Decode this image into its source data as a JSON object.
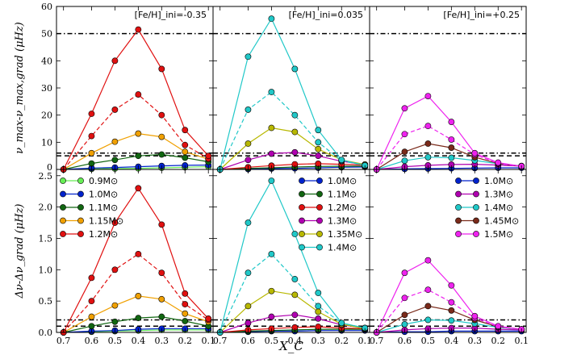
{
  "chart_data": {
    "type": "line",
    "xlabel": "X_C",
    "x_ticks": [
      "0.7",
      "0.6",
      "0.5",
      "0.4",
      "0.3",
      "0.2",
      "0.1"
    ],
    "x_values": [
      0.72,
      0.6,
      0.5,
      0.4,
      0.3,
      0.2,
      0.1
    ],
    "xlim": [
      0.75,
      0.08
    ],
    "rows": [
      {
        "ylabel": "ν_max-ν_max,grad (μHz)",
        "ylim": [
          0,
          60
        ],
        "y_ticks": [
          0,
          10,
          20,
          30,
          40,
          50,
          60
        ],
        "reference_lines": [
          {
            "style": "dash-dot",
            "y": 50
          },
          {
            "style": "dash-dot",
            "y": 6
          },
          {
            "style": "dashed",
            "y": 5
          }
        ]
      },
      {
        "ylabel": "Δν-Δν_grad (μHz)",
        "ylim": [
          0,
          2.6
        ],
        "y_ticks": [
          0.0,
          0.5,
          1.0,
          1.5,
          2.0,
          2.5
        ],
        "reference_lines": [
          {
            "style": "dash-dot",
            "y": 0.2
          },
          {
            "style": "dashed",
            "y": 0.1
          }
        ]
      }
    ],
    "panels": [
      {
        "annotation": "[Fe/H]_ini=-0.35",
        "series": [
          {
            "name": "0.9M⊙",
            "color": "#66ee55",
            "dashed": false,
            "nu": [
              0.0,
              0.2,
              0.3,
              0.4,
              0.6,
              0.8,
              1.0
            ],
            "dnu": [
              0.0,
              0.01,
              0.02,
              0.03,
              0.04,
              0.04,
              0.04
            ]
          },
          {
            "name": "1.0M⊙",
            "color": "#0022cc",
            "dashed": false,
            "nu": [
              0.0,
              0.5,
              0.7,
              1.0,
              1.3,
              1.5,
              1.6
            ],
            "dnu": [
              0.0,
              0.02,
              0.03,
              0.05,
              0.06,
              0.06,
              0.06
            ]
          },
          {
            "name": "1.1M⊙",
            "color": "#116611",
            "dashed": false,
            "nu": [
              0.0,
              2.2,
              3.5,
              5.0,
              5.5,
              4.3,
              2.8
            ],
            "dnu": [
              0.0,
              0.1,
              0.17,
              0.23,
              0.25,
              0.18,
              0.1
            ]
          },
          {
            "name": "1.15M⊙",
            "color": "#f0a000",
            "dashed": false,
            "nu": [
              0.0,
              6.0,
              10.2,
              13.2,
              12.0,
              6.5,
              3.8
            ],
            "dnu": [
              0.0,
              0.25,
              0.43,
              0.58,
              0.53,
              0.3,
              0.17
            ]
          },
          {
            "name": "1.2M⊙ (dashed)",
            "color": "#e01010",
            "dashed": true,
            "nu": [
              0.0,
              12.3,
              22.0,
              27.6,
              20.0,
              9.0,
              4.0
            ],
            "dnu": [
              0.0,
              0.5,
              1.0,
              1.25,
              0.95,
              0.45,
              0.2
            ]
          },
          {
            "name": "1.2M⊙",
            "color": "#e01010",
            "dashed": false,
            "nu": [
              0.0,
              20.5,
              40.0,
              51.5,
              37.0,
              14.5,
              5.0
            ],
            "dnu": [
              0.0,
              0.87,
              1.75,
              2.3,
              1.72,
              0.62,
              0.22
            ]
          }
        ]
      },
      {
        "annotation": "[Fe/H]_ini=0.035",
        "series": [
          {
            "name": "1.0M⊙",
            "color": "#0022cc",
            "dashed": false,
            "nu": [
              0.0,
              0.1,
              0.3,
              0.4,
              0.6,
              0.8,
              0.9
            ],
            "dnu": [
              0.0,
              0.01,
              0.02,
              0.02,
              0.03,
              0.03,
              0.03
            ]
          },
          {
            "name": "1.1M⊙",
            "color": "#116611",
            "dashed": false,
            "nu": [
              0.0,
              0.4,
              0.6,
              0.9,
              1.1,
              1.2,
              1.2
            ],
            "dnu": [
              0.0,
              0.02,
              0.03,
              0.04,
              0.05,
              0.05,
              0.05
            ]
          },
          {
            "name": "1.2M⊙",
            "color": "#e01010",
            "dashed": false,
            "nu": [
              0.0,
              0.8,
              1.4,
              1.9,
              2.1,
              1.9,
              1.6
            ],
            "dnu": [
              0.0,
              0.04,
              0.06,
              0.08,
              0.09,
              0.07,
              0.06
            ]
          },
          {
            "name": "1.3M⊙",
            "color": "#b000b0",
            "dashed": false,
            "nu": [
              0.0,
              3.5,
              5.8,
              6.3,
              5.0,
              3.0,
              1.8
            ],
            "dnu": [
              0.0,
              0.15,
              0.25,
              0.28,
              0.22,
              0.12,
              0.07
            ]
          },
          {
            "name": "1.35M⊙",
            "color": "#b8b800",
            "dashed": false,
            "nu": [
              0.0,
              9.5,
              15.3,
              13.8,
              7.5,
              3.5,
              1.8
            ],
            "dnu": [
              0.0,
              0.42,
              0.66,
              0.6,
              0.33,
              0.13,
              0.06
            ]
          },
          {
            "name": "1.4M⊙ (dashed)",
            "color": "#20c8c8",
            "dashed": true,
            "nu": [
              0.0,
              22.0,
              28.5,
              20.0,
              10.0,
              3.2,
              1.5
            ],
            "dnu": [
              0.0,
              0.95,
              1.25,
              0.85,
              0.42,
              0.15,
              0.07
            ]
          },
          {
            "name": "1.4M⊙",
            "color": "#20c8c8",
            "dashed": false,
            "nu": [
              0.0,
              41.5,
              55.5,
              37.0,
              14.5,
              3.5,
              1.5
            ],
            "dnu": [
              0.0,
              1.75,
              2.42,
              1.57,
              0.63,
              0.15,
              0.07
            ]
          }
        ]
      },
      {
        "annotation": "[Fe/H]_ini=+0.25",
        "series": [
          {
            "name": "1.0M⊙",
            "color": "#0022cc",
            "dashed": false,
            "nu": [
              0.0,
              0.2,
              0.3,
              0.4,
              0.5,
              0.6,
              0.6
            ],
            "dnu": [
              0.0,
              0.01,
              0.01,
              0.02,
              0.02,
              0.02,
              0.02
            ]
          },
          {
            "name": "1.3M⊙",
            "color": "#b000b0",
            "dashed": false,
            "nu": [
              0.0,
              1.0,
              1.5,
              1.8,
              1.9,
              1.6,
              1.2
            ],
            "dnu": [
              0.0,
              0.04,
              0.06,
              0.07,
              0.07,
              0.05,
              0.04
            ]
          },
          {
            "name": "1.4M⊙",
            "color": "#20c8c8",
            "dashed": false,
            "nu": [
              0.0,
              3.2,
              4.5,
              4.3,
              3.3,
              2.1,
              1.3
            ],
            "dnu": [
              0.0,
              0.13,
              0.2,
              0.19,
              0.14,
              0.08,
              0.05
            ]
          },
          {
            "name": "1.45M⊙",
            "color": "#7a2a1a",
            "dashed": false,
            "nu": [
              0.0,
              6.5,
              9.5,
              8.0,
              4.5,
              2.2,
              1.2
            ],
            "dnu": [
              0.0,
              0.28,
              0.42,
              0.35,
              0.2,
              0.09,
              0.05
            ]
          },
          {
            "name": "1.5M⊙ (dashed)",
            "color": "#ee22ee",
            "dashed": true,
            "nu": [
              0.0,
              13.0,
              16.0,
              11.0,
              5.5,
              2.2,
              1.1
            ],
            "dnu": [
              0.0,
              0.55,
              0.68,
              0.48,
              0.23,
              0.09,
              0.05
            ]
          },
          {
            "name": "1.5M⊙",
            "color": "#ee22ee",
            "dashed": false,
            "nu": [
              0.0,
              22.5,
              27.0,
              17.5,
              6.0,
              2.5,
              1.2
            ],
            "dnu": [
              0.0,
              0.95,
              1.15,
              0.75,
              0.26,
              0.1,
              0.05
            ]
          }
        ]
      }
    ],
    "legends": [
      {
        "panel": 0,
        "placement": "top-left",
        "entries": [
          {
            "label": "0.9M⊙",
            "color": "#66ee55"
          },
          {
            "label": "1.0M⊙",
            "color": "#0022cc"
          },
          {
            "label": "1.1M⊙",
            "color": "#116611"
          },
          {
            "label": "1.15M⊙",
            "color": "#f0a000"
          },
          {
            "label": "1.2M⊙",
            "color": "#e01010"
          }
        ]
      },
      {
        "panel": 1,
        "placement": "top-right",
        "entries": [
          {
            "label": "1.0M⊙",
            "color": "#0022cc"
          },
          {
            "label": "1.1M⊙",
            "color": "#116611"
          },
          {
            "label": "1.2M⊙",
            "color": "#e01010"
          },
          {
            "label": "1.3M⊙",
            "color": "#b000b0"
          },
          {
            "label": "1.35M⊙",
            "color": "#b8b800"
          },
          {
            "label": "1.4M⊙",
            "color": "#20c8c8"
          }
        ]
      },
      {
        "panel": 2,
        "placement": "top-right",
        "entries": [
          {
            "label": "1.0M⊙",
            "color": "#0022cc"
          },
          {
            "label": "1.3M⊙",
            "color": "#b000b0"
          },
          {
            "label": "1.4M⊙",
            "color": "#20c8c8"
          },
          {
            "label": "1.45M⊙",
            "color": "#7a2a1a"
          },
          {
            "label": "1.5M⊙",
            "color": "#ee22ee"
          }
        ]
      }
    ]
  }
}
